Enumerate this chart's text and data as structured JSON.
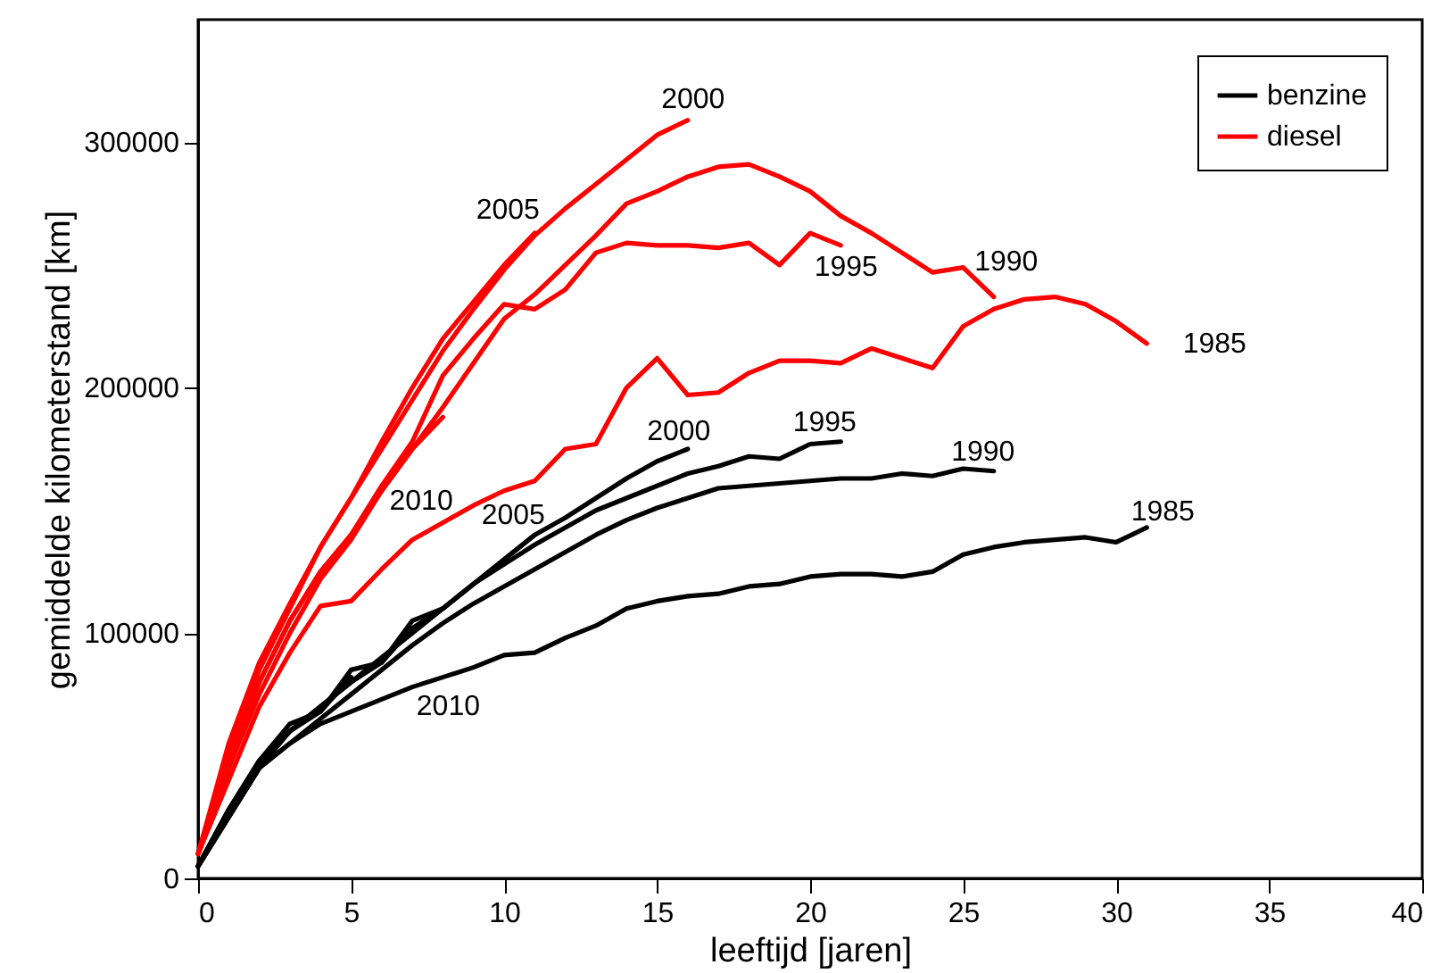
{
  "chart_data": {
    "type": "line",
    "xlabel": "leeftijd [jaren]",
    "ylabel": "gemiddelde kilometerstand [km]",
    "xlim": [
      0,
      40
    ],
    "xticks": [
      0,
      5,
      10,
      15,
      20,
      25,
      30,
      35,
      40
    ],
    "ylim": [
      0,
      350000
    ],
    "yticks": [
      0,
      100000,
      200000,
      300000
    ],
    "grid": false,
    "legend": "top right",
    "line_style": "solid",
    "series": [
      {
        "name": "benzine",
        "color": "#000000",
        "x": [
          0,
          1,
          2,
          3,
          4,
          5,
          6,
          7,
          8,
          9,
          10,
          11,
          12,
          13,
          14,
          15,
          16,
          17,
          18,
          19,
          20,
          21,
          22,
          23,
          24,
          25,
          26,
          27,
          28,
          29,
          30,
          31
        ],
        "values": [
          5000,
          25000,
          45000,
          55000,
          63000,
          68000,
          73000,
          78000,
          82000,
          86000,
          91000,
          92000,
          98000,
          103000,
          110000,
          113000,
          115000,
          116000,
          119000,
          120000,
          123000,
          124000,
          124000,
          123000,
          125000,
          132000,
          135000,
          137000,
          138000,
          139000,
          137000,
          143000
        ]
      },
      {
        "color": "#000000",
        "x": [
          0,
          1,
          2,
          3,
          4,
          5,
          6,
          7,
          8,
          9,
          10,
          11,
          12,
          13,
          14,
          15,
          16,
          17,
          18,
          19,
          20,
          21,
          22,
          23,
          24,
          25,
          26
        ],
        "values": [
          5000,
          25000,
          45000,
          55000,
          65000,
          75000,
          85000,
          95000,
          104000,
          112000,
          119000,
          126000,
          133000,
          140000,
          146000,
          151000,
          155000,
          159000,
          160000,
          161000,
          162000,
          163000,
          163000,
          165000,
          164000,
          167000,
          166000
        ]
      },
      {
        "color": "#000000",
        "x": [
          0,
          1,
          2,
          3,
          4,
          5,
          6,
          7,
          8,
          9,
          10,
          11,
          12,
          13,
          14,
          15,
          16,
          17,
          18,
          19,
          20,
          21
        ],
        "values": [
          5000,
          25000,
          45000,
          60000,
          70000,
          80000,
          90000,
          100000,
          110000,
          120000,
          128000,
          136000,
          143000,
          150000,
          155000,
          160000,
          165000,
          168000,
          172000,
          171000,
          177000,
          178000
        ]
      },
      {
        "color": "#000000",
        "x": [
          0,
          1,
          2,
          3,
          4,
          5,
          6,
          7,
          8,
          9,
          10,
          11,
          12,
          13,
          14,
          15,
          16
        ],
        "values": [
          5000,
          28000,
          48000,
          63000,
          68000,
          85000,
          88000,
          105000,
          110000,
          120000,
          130000,
          140000,
          147000,
          155000,
          163000,
          170000,
          175000
        ]
      },
      {
        "color": "#000000",
        "x": [
          0,
          1,
          2,
          3,
          4,
          5,
          6,
          7,
          8,
          9,
          10,
          11
        ],
        "values": [
          5000,
          28000,
          48000,
          60000,
          70000,
          80000,
          88000,
          102000,
          110000,
          120000,
          130000,
          140000
        ]
      },
      {
        "color": "#000000",
        "x": [
          0,
          1,
          2,
          3,
          4,
          5
        ],
        "values": [
          5000,
          27000,
          47000,
          60000,
          68000,
          82000
        ]
      },
      {
        "name": "diesel",
        "color": "#ff0000",
        "x": [
          0,
          1,
          2,
          3,
          4,
          5,
          6,
          7,
          8,
          9,
          10,
          11,
          12,
          13,
          14,
          15,
          16,
          17,
          18,
          19,
          20,
          21,
          22,
          23,
          24,
          25,
          26,
          27,
          28,
          29,
          30,
          31
        ],
        "values": [
          10000,
          40000,
          70000,
          92000,
          111000,
          113000,
          126000,
          138000,
          145000,
          152000,
          158000,
          162000,
          175000,
          177000,
          200000,
          212000,
          197000,
          198000,
          206000,
          211000,
          211000,
          210000,
          216000,
          212000,
          208000,
          225000,
          232000,
          236000,
          237000,
          234000,
          227000,
          218000
        ]
      },
      {
        "color": "#ff0000",
        "x": [
          0,
          1,
          2,
          3,
          4,
          5,
          6,
          7,
          8,
          9,
          10,
          11,
          12,
          13,
          14,
          15,
          16,
          17,
          18,
          19,
          20,
          21,
          22,
          23,
          24,
          25,
          26
        ],
        "values": [
          10000,
          45000,
          80000,
          105000,
          125000,
          140000,
          158000,
          175000,
          192000,
          210000,
          228000,
          238000,
          250000,
          262000,
          275000,
          280000,
          286000,
          290000,
          291000,
          286000,
          280000,
          270000,
          263000,
          255000,
          247000,
          249000,
          237000
        ]
      },
      {
        "color": "#ff0000",
        "x": [
          0,
          1,
          2,
          3,
          4,
          5,
          6,
          7,
          8,
          9,
          10,
          11,
          12,
          13,
          14,
          15,
          16,
          17,
          18,
          19,
          20,
          21
        ],
        "values": [
          10000,
          45000,
          80000,
          105000,
          125000,
          140000,
          160000,
          178000,
          205000,
          220000,
          234000,
          232000,
          240000,
          255000,
          259000,
          258000,
          258000,
          257000,
          259000,
          250000,
          263000,
          258000
        ]
      },
      {
        "color": "#ff0000",
        "x": [
          0,
          1,
          2,
          3,
          4,
          5,
          6,
          7,
          8,
          9,
          10,
          11,
          12,
          13,
          14,
          15,
          16
        ],
        "values": [
          10000,
          50000,
          85000,
          110000,
          135000,
          155000,
          175000,
          195000,
          215000,
          232000,
          248000,
          262000,
          273000,
          283000,
          293000,
          303000,
          309000
        ]
      },
      {
        "color": "#ff0000",
        "x": [
          0,
          1,
          2,
          3,
          4,
          5,
          6,
          7,
          8,
          9,
          10,
          11
        ],
        "values": [
          10000,
          55000,
          88000,
          112000,
          135000,
          155000,
          178000,
          200000,
          220000,
          235000,
          250000,
          263000
        ]
      },
      {
        "color": "#ff0000",
        "x": [
          0,
          1,
          2,
          3,
          4,
          5,
          6,
          7,
          8
        ],
        "values": [
          10000,
          45000,
          75000,
          100000,
          122000,
          138000,
          158000,
          175000,
          188000
        ]
      }
    ],
    "annotations": [
      {
        "text": "1985",
        "x": 31,
        "y": 143000
      },
      {
        "text": "1990",
        "x": 26,
        "y": 166000
      },
      {
        "text": "1995",
        "x": 21,
        "y": 178000
      },
      {
        "text": "2000",
        "x": 16,
        "y": 175000
      },
      {
        "text": "2005",
        "x": 11,
        "y": 140000
      },
      {
        "text": "2010",
        "x": 8,
        "y": 82000
      },
      {
        "text": "1985",
        "x": 31,
        "y": 218000
      },
      {
        "text": "1990",
        "x": 26,
        "y": 237000
      },
      {
        "text": "1995",
        "x": 21,
        "y": 258000
      },
      {
        "text": "2000",
        "x": 16,
        "y": 309000
      },
      {
        "text": "2005",
        "x": 11,
        "y": 263000
      },
      {
        "text": "2010",
        "x": 7,
        "y": 138000
      }
    ]
  }
}
